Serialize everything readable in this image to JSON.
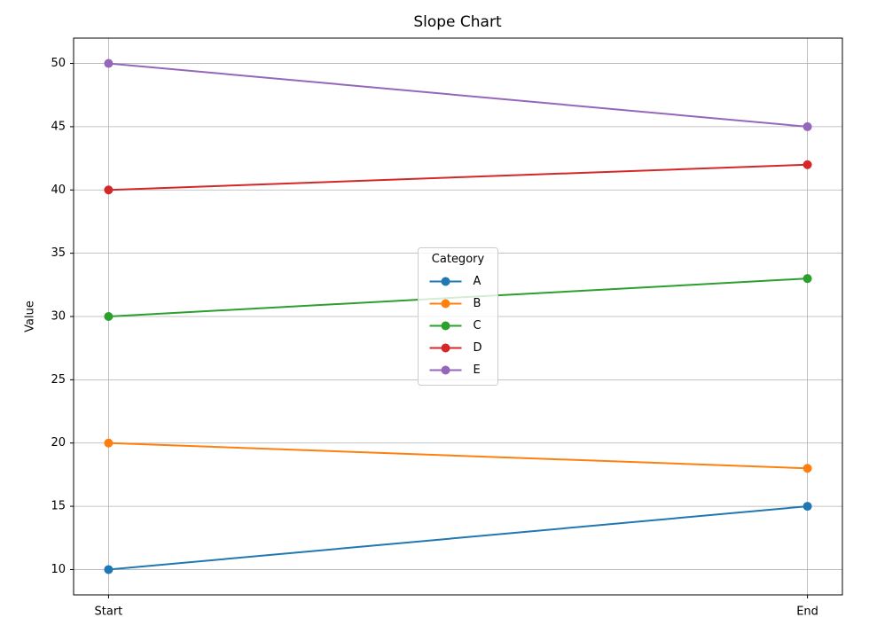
{
  "chart_data": {
    "type": "line",
    "title": "Slope Chart",
    "y_label": "Value",
    "categories": [
      "Start",
      "End"
    ],
    "series": [
      {
        "name": "A",
        "color": "#1f77b4",
        "values": [
          10,
          15
        ]
      },
      {
        "name": "B",
        "color": "#ff7f0e",
        "values": [
          20,
          18
        ]
      },
      {
        "name": "C",
        "color": "#2ca02c",
        "values": [
          30,
          33
        ]
      },
      {
        "name": "D",
        "color": "#d62728",
        "values": [
          40,
          42
        ]
      },
      {
        "name": "E",
        "color": "#9467bd",
        "values": [
          50,
          45
        ]
      }
    ],
    "ylim": [
      8,
      52
    ],
    "yticks": [
      10,
      15,
      20,
      25,
      30,
      35,
      40,
      45,
      50
    ],
    "grid": true,
    "legend_title": "Category",
    "legend_position": "center",
    "markers": true
  }
}
